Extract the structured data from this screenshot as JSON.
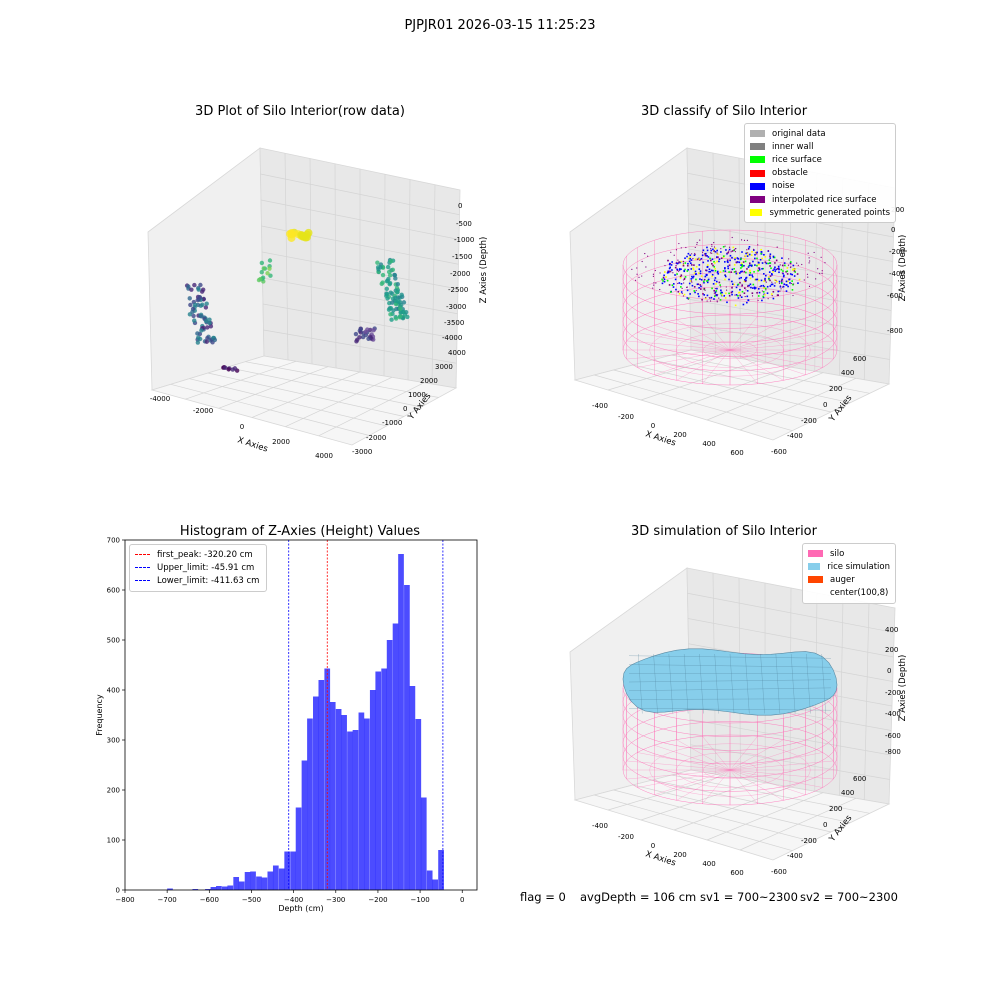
{
  "suptitle": "PJPJR01 2026-03-15 11:25:23",
  "panels": {
    "raw": {
      "title": "3D Plot of Silo Interior(row data)",
      "xlabel": "X Axies",
      "ylabel": "Y Axies",
      "zlabel": "Z Axies (Depth)",
      "xticks": [
        "-4000",
        "-2000",
        "0",
        "2000",
        "4000"
      ],
      "yticks": [
        "-3000",
        "-2000",
        "-1000",
        "0",
        "1000",
        "2000",
        "3000",
        "4000"
      ],
      "zticks": [
        "0",
        "-500",
        "-1000",
        "-1500",
        "-2000",
        "-2500",
        "-3000",
        "-3500",
        "-4000"
      ]
    },
    "classify": {
      "title": "3D classify of Silo Interior",
      "xlabel": "X Axies",
      "ylabel": "Y Axies",
      "zlabel": "Z Axies (Depth)",
      "xticks": [
        "-400",
        "-200",
        "0",
        "200",
        "400",
        "600"
      ],
      "yticks": [
        "-600",
        "-400",
        "-200",
        "0",
        "200",
        "400",
        "600"
      ],
      "zticks": [
        "200",
        "0",
        "-200",
        "-400",
        "-600",
        "-800"
      ],
      "legend": [
        {
          "label": "original data",
          "color": "#b0b0b0"
        },
        {
          "label": "inner wall",
          "color": "#808080"
        },
        {
          "label": "rice surface",
          "color": "#00ff00"
        },
        {
          "label": "obstacle",
          "color": "#ff0000"
        },
        {
          "label": "noise",
          "color": "#0000ff"
        },
        {
          "label": "interpolated rice surface",
          "color": "#800080"
        },
        {
          "label": "symmetric generated points",
          "color": "#ffff00"
        }
      ]
    },
    "simulation": {
      "title": "3D simulation of Silo Interior",
      "xlabel": "X Axies",
      "ylabel": "Y Axies",
      "zlabel": "Z Axies (Depth)",
      "xticks": [
        "-400",
        "-200",
        "0",
        "200",
        "400",
        "600"
      ],
      "yticks": [
        "-600",
        "-400",
        "-200",
        "0",
        "200",
        "400",
        "600"
      ],
      "zticks": [
        "400",
        "200",
        "0",
        "-200",
        "-400",
        "-600",
        "-800"
      ],
      "legend": [
        {
          "label": "silo",
          "color": "#ff69b4"
        },
        {
          "label": "rice simulation",
          "color": "#87ceeb"
        },
        {
          "label": "auger",
          "color": "#ff4500"
        },
        {
          "label": "center(100,8)",
          "color": "none"
        }
      ]
    }
  },
  "status": {
    "flag": "flag = 0",
    "avg": "avgDepth = 106 cm",
    "sv1": "sv1 = 700~2300",
    "sv2": "sv2 = 700~2300"
  },
  "chart_data": [
    {
      "type": "bar",
      "title": "Histogram of Z-Axies (Height) Values",
      "xlabel": "Depth (cm)",
      "ylabel": "Frequency",
      "xlim": [
        -800,
        35
      ],
      "ylim": [
        0,
        700
      ],
      "xticks": [
        -800,
        -700,
        -600,
        -500,
        -400,
        -300,
        -200,
        -100,
        0
      ],
      "yticks": [
        0,
        100,
        200,
        300,
        400,
        500,
        600,
        700
      ],
      "bar_color": "#0000ff",
      "bin_width": 13.5,
      "bins": [
        {
          "x": -700,
          "v": 3
        },
        {
          "x": -640,
          "v": 2
        },
        {
          "x": -610,
          "v": 2
        },
        {
          "x": -597,
          "v": 6
        },
        {
          "x": -584,
          "v": 8
        },
        {
          "x": -570,
          "v": 7
        },
        {
          "x": -557,
          "v": 9
        },
        {
          "x": -543,
          "v": 26
        },
        {
          "x": -530,
          "v": 17
        },
        {
          "x": -516,
          "v": 36
        },
        {
          "x": -503,
          "v": 37
        },
        {
          "x": -489,
          "v": 27
        },
        {
          "x": -476,
          "v": 25
        },
        {
          "x": -462,
          "v": 37
        },
        {
          "x": -449,
          "v": 49
        },
        {
          "x": -435,
          "v": 43
        },
        {
          "x": -422,
          "v": 77
        },
        {
          "x": -408,
          "v": 77
        },
        {
          "x": -395,
          "v": 165
        },
        {
          "x": -381,
          "v": 259
        },
        {
          "x": -368,
          "v": 343
        },
        {
          "x": -354,
          "v": 387
        },
        {
          "x": -341,
          "v": 420
        },
        {
          "x": -327,
          "v": 443
        },
        {
          "x": -314,
          "v": 376
        },
        {
          "x": -300,
          "v": 362
        },
        {
          "x": -287,
          "v": 350
        },
        {
          "x": -273,
          "v": 317
        },
        {
          "x": -260,
          "v": 320
        },
        {
          "x": -246,
          "v": 355
        },
        {
          "x": -233,
          "v": 343
        },
        {
          "x": -219,
          "v": 400
        },
        {
          "x": -206,
          "v": 437
        },
        {
          "x": -192,
          "v": 443
        },
        {
          "x": -179,
          "v": 500
        },
        {
          "x": -165,
          "v": 533
        },
        {
          "x": -152,
          "v": 672
        },
        {
          "x": -138,
          "v": 610
        },
        {
          "x": -125,
          "v": 408
        },
        {
          "x": -111,
          "v": 342
        },
        {
          "x": -98,
          "v": 185
        },
        {
          "x": -84,
          "v": 39
        },
        {
          "x": -71,
          "v": 21
        },
        {
          "x": -57,
          "v": 80
        }
      ],
      "vlines": [
        {
          "name": "first_peak: -320.20 cm",
          "x": -320.2,
          "color": "#ff0000"
        },
        {
          "name": "Upper_limit: -45.91 cm",
          "x": -45.91,
          "color": "#0000ff"
        },
        {
          "name": "Lower_limit: -411.63 cm",
          "x": -411.63,
          "color": "#0000ff"
        }
      ],
      "legend": "top-left"
    }
  ]
}
